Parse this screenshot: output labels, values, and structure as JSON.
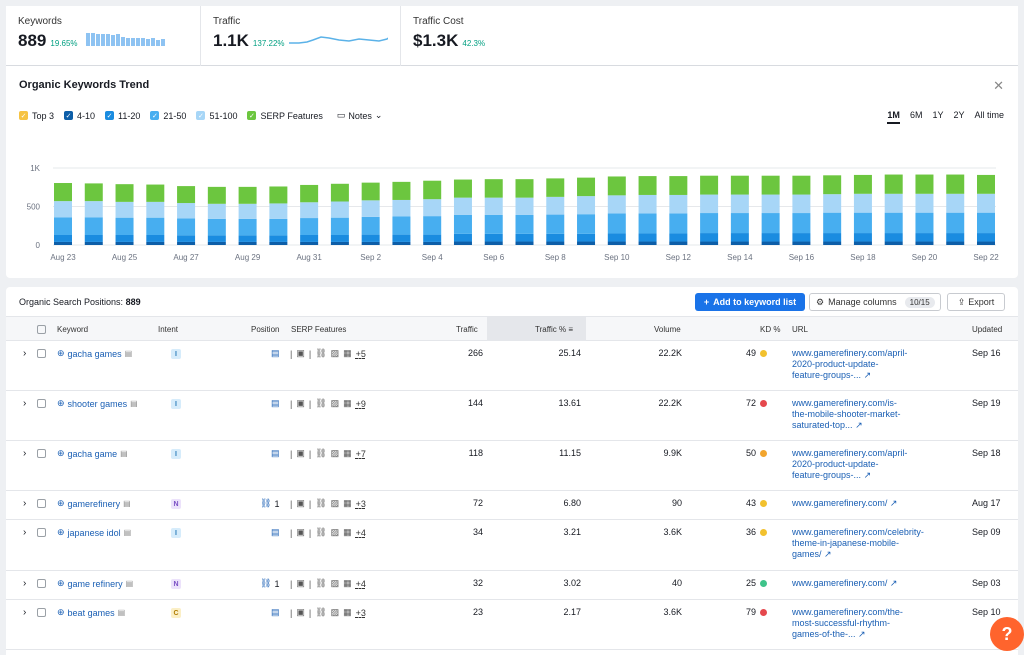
{
  "metrics": [
    {
      "label": "Keywords",
      "value": "889",
      "change": "19.65%"
    },
    {
      "label": "Traffic",
      "value": "1.1K",
      "change": "137.22%"
    },
    {
      "label": "Traffic Cost",
      "value": "$1.3K",
      "change": "42.3%"
    }
  ],
  "trend": {
    "title": "Organic Keywords Trend",
    "legend": [
      {
        "label": "Top 3",
        "color": "#f6c343"
      },
      {
        "label": "4-10",
        "color": "#0d5ea8"
      },
      {
        "label": "11-20",
        "color": "#1a8ce0"
      },
      {
        "label": "21-50",
        "color": "#47aef0"
      },
      {
        "label": "51-100",
        "color": "#a7d6f7"
      },
      {
        "label": "SERP Features",
        "color": "#6cc63f"
      }
    ],
    "notes_label": "Notes",
    "periods": [
      "1M",
      "6M",
      "1Y",
      "2Y",
      "All time"
    ],
    "active_period": "1M"
  },
  "chart_data": {
    "type": "bar",
    "stacked": true,
    "ylim": [
      0,
      1000
    ],
    "yticks": [
      "0",
      "500",
      "1K"
    ],
    "xlabels": [
      "Aug 23",
      "Aug 25",
      "Aug 27",
      "Aug 29",
      "Aug 31",
      "Sep 2",
      "Sep 4",
      "Sep 6",
      "Sep 8",
      "Sep 10",
      "Sep 12",
      "Sep 14",
      "Sep 16",
      "Sep 18",
      "Sep 20",
      "Sep 22"
    ],
    "series": [
      {
        "name": "4-10",
        "values": [
          40,
          40,
          40,
          40,
          40,
          40,
          40,
          40,
          40,
          40,
          40,
          40,
          40,
          45,
          45,
          45,
          45,
          45,
          45,
          45,
          45,
          45,
          45,
          45,
          45,
          45,
          45,
          45,
          45,
          45,
          45
        ]
      },
      {
        "name": "11-20",
        "values": [
          90,
          90,
          90,
          90,
          85,
          85,
          85,
          85,
          90,
          90,
          95,
          95,
          95,
          100,
          100,
          100,
          100,
          100,
          105,
          105,
          105,
          110,
          110,
          110,
          110,
          110,
          110,
          110,
          110,
          110,
          110
        ]
      },
      {
        "name": "21-50",
        "values": [
          230,
          230,
          225,
          225,
          220,
          215,
          215,
          215,
          220,
          225,
          230,
          235,
          240,
          245,
          245,
          245,
          250,
          255,
          260,
          260,
          260,
          260,
          260,
          260,
          260,
          265,
          265,
          265,
          265,
          265,
          265
        ]
      },
      {
        "name": "51-100",
        "values": [
          210,
          210,
          205,
          205,
          200,
          195,
          195,
          200,
          205,
          210,
          215,
          215,
          220,
          225,
          225,
          225,
          230,
          235,
          235,
          240,
          240,
          240,
          240,
          240,
          240,
          240,
          245,
          245,
          245,
          245,
          245
        ]
      },
      {
        "name": "SERP Features",
        "values": [
          235,
          230,
          230,
          225,
          220,
          220,
          220,
          220,
          225,
          230,
          230,
          235,
          240,
          235,
          240,
          240,
          240,
          240,
          245,
          245,
          245,
          245,
          245,
          245,
          245,
          245,
          245,
          250,
          250,
          250,
          245
        ]
      }
    ]
  },
  "positions": {
    "title": "Organic Search Positions:",
    "count": "889",
    "add_button": "Add to keyword list",
    "manage_button": "Manage columns",
    "manage_count": "10/15",
    "export_button": "Export",
    "columns": [
      "Keyword",
      "Intent",
      "Position",
      "SERP Features",
      "Traffic",
      "Traffic %",
      "Volume",
      "KD %",
      "URL",
      "Updated"
    ],
    "rows": [
      {
        "keyword": "gacha games",
        "intent": "I",
        "position": "",
        "serp_more": "+5",
        "traffic": "266",
        "traffic_pct": "25.14",
        "volume": "22.2K",
        "kd": "49",
        "kd_color": "#f2c12e",
        "url": "www.gamerefinery.com/april-2020-product-update-feature-groups-...",
        "updated": "Sep 16"
      },
      {
        "keyword": "shooter games",
        "intent": "I",
        "position": "",
        "serp_more": "+9",
        "traffic": "144",
        "traffic_pct": "13.61",
        "volume": "22.2K",
        "kd": "72",
        "kd_color": "#e5484d",
        "url": "www.gamerefinery.com/is-the-mobile-shooter-market-saturated-top...",
        "updated": "Sep 19"
      },
      {
        "keyword": "gacha game",
        "intent": "I",
        "position": "",
        "serp_more": "+7",
        "traffic": "118",
        "traffic_pct": "11.15",
        "volume": "9.9K",
        "kd": "50",
        "kd_color": "#f2a52e",
        "url": "www.gamerefinery.com/april-2020-product-update-feature-groups-...",
        "updated": "Sep 18"
      },
      {
        "keyword": "gamerefinery",
        "intent": "N",
        "position": "1",
        "serp_more": "+3",
        "traffic": "72",
        "traffic_pct": "6.80",
        "volume": "90",
        "kd": "43",
        "kd_color": "#f2c12e",
        "url": "www.gamerefinery.com/",
        "updated": "Aug 17"
      },
      {
        "keyword": "japanese idol",
        "intent": "I",
        "position": "",
        "serp_more": "+4",
        "traffic": "34",
        "traffic_pct": "3.21",
        "volume": "3.6K",
        "kd": "36",
        "kd_color": "#f2c12e",
        "url": "www.gamerefinery.com/celebrity-theme-in-japanese-mobile-games/",
        "updated": "Sep 09"
      },
      {
        "keyword": "game refinery",
        "intent": "N",
        "position": "1",
        "serp_more": "+4",
        "traffic": "32",
        "traffic_pct": "3.02",
        "volume": "40",
        "kd": "25",
        "kd_color": "#3ec38a",
        "url": "www.gamerefinery.com/",
        "updated": "Sep 03"
      },
      {
        "keyword": "beat games",
        "intent": "C",
        "position": "",
        "serp_more": "+3",
        "traffic": "23",
        "traffic_pct": "2.17",
        "volume": "3.6K",
        "kd": "79",
        "kd_color": "#e5484d",
        "url": "www.gamerefinery.com/the-most-successful-rhythm-games-of-the-...",
        "updated": "Sep 10"
      }
    ]
  }
}
